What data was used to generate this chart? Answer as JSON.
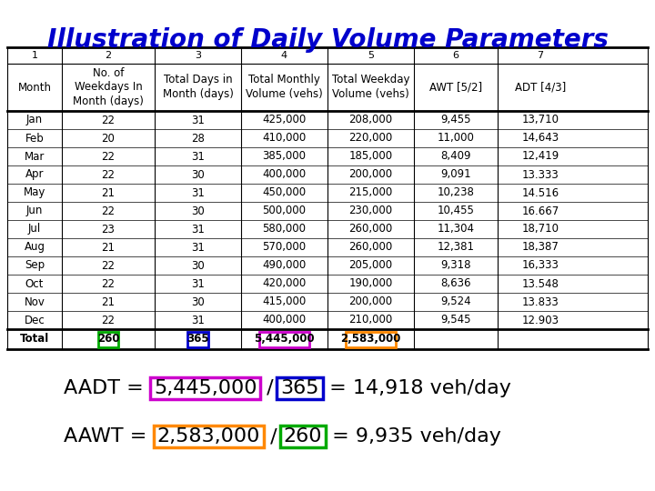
{
  "title": "Illustration of Daily Volume Parameters",
  "title_color": "#0000CC",
  "title_fontsize": 20,
  "col_numbers": [
    "1",
    "2",
    "3",
    "4",
    "5",
    "6",
    "7"
  ],
  "col_headers": [
    "Month",
    "No. of\nWeekdays In\nMonth (days)",
    "Total Days in\nMonth (days)",
    "Total Monthly\nVolume (vehs)",
    "Total Weekday\nVolume (vehs)",
    "AWT [5/2]",
    "ADT [4/3]"
  ],
  "months": [
    "Jan",
    "Feb",
    "Mar",
    "Apr",
    "May",
    "Jun",
    "Jul",
    "Aug",
    "Sep",
    "Oct",
    "Nov",
    "Dec"
  ],
  "weekdays": [
    "22",
    "20",
    "22",
    "22",
    "21",
    "22",
    "23",
    "21",
    "22",
    "22",
    "21",
    "22"
  ],
  "total_days": [
    "31",
    "28",
    "31",
    "30",
    "31",
    "30",
    "31",
    "31",
    "30",
    "31",
    "30",
    "31"
  ],
  "monthly_volume": [
    "425,000",
    "410,000",
    "385,000",
    "400,000",
    "450,000",
    "500,000",
    "580,000",
    "570,000",
    "490,000",
    "420,000",
    "415,000",
    "400,000"
  ],
  "weekday_volume": [
    "208,000",
    "220,000",
    "185,000",
    "200,000",
    "215,000",
    "230,000",
    "260,000",
    "260,000",
    "205,000",
    "190,000",
    "200,000",
    "210,000"
  ],
  "awt": [
    "9,455",
    "11,000",
    "8,409",
    "9,091",
    "10,238",
    "10,455",
    "11,304",
    "12,381",
    "9,318",
    "8,636",
    "9,524",
    "9,545"
  ],
  "adt": [
    "13,710",
    "14,643",
    "12,419",
    "13.333",
    "14.516",
    "16.667",
    "18,710",
    "18,387",
    "16,333",
    "13.548",
    "13.833",
    "12.903"
  ],
  "total_weekdays": "260",
  "total_days_year": "365",
  "total_monthly": "5,445,000",
  "total_weekday": "2,583,000",
  "total_box_colors": [
    "#00AA00",
    "#0000CC",
    "#CC00CC",
    "#FF8800"
  ],
  "formula1_prefix": "AADT = ",
  "formula1_val1": "5,445,000",
  "formula1_val1_color": "#CC00CC",
  "formula1_sep": " / ",
  "formula1_val2": "365",
  "formula1_val2_color": "#0000CC",
  "formula1_suffix": " = 14,918 veh/day",
  "formula2_prefix": "AAWT = ",
  "formula2_val1": "2,583,000",
  "formula2_val1_color": "#FF8800",
  "formula2_sep": " / ",
  "formula2_val2": "260",
  "formula2_val2_color": "#00AA00",
  "formula2_suffix": " = 9,935 veh/day",
  "bg_color": "#FFFFFF",
  "table_font": "DejaVu Sans",
  "data_fontsize": 8.5,
  "header_fontsize": 8.5,
  "formula_fontsize": 16
}
